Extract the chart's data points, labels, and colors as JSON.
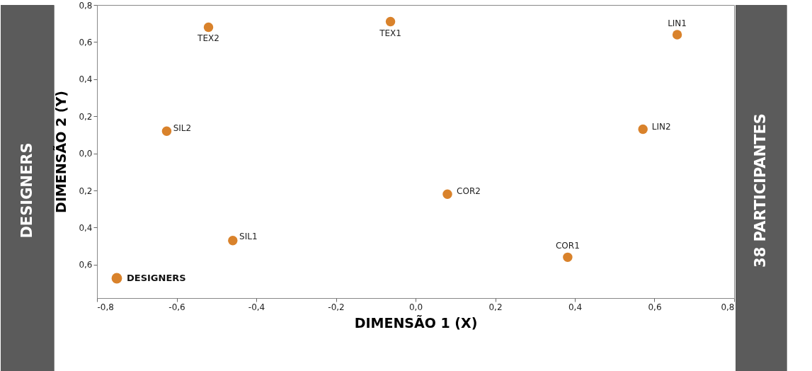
{
  "chart_data": {
    "type": "scatter",
    "xlabel": "DIMENSÃO 1 (X)",
    "ylabel": "DIMENSÃO 2 (Y)",
    "x": [
      -0.52,
      -0.063,
      0.657,
      -0.625,
      0.571,
      0.08,
      -0.459,
      0.382
    ],
    "series": [
      {
        "name": "DESIGNERS",
        "color": "#d9822b",
        "values": [
          0.68,
          0.71,
          0.64,
          0.12,
          0.13,
          -0.22,
          -0.47,
          -0.56
        ]
      }
    ],
    "value_labels": [
      "TEX2",
      "TEX1",
      "LIN1",
      "SIL2",
      "LIN2",
      "COR2",
      "SIL1",
      "COR1"
    ],
    "xlim": [
      -0.8,
      0.8
    ],
    "ylim": [
      -0.78,
      0.8
    ],
    "xticks": [
      {
        "value": -0.8,
        "label": "-0,8"
      },
      {
        "value": -0.6,
        "label": "-0,6"
      },
      {
        "value": -0.4,
        "label": "-0,4"
      },
      {
        "value": -0.2,
        "label": "-0,2"
      },
      {
        "value": 0,
        "label": "0,0"
      },
      {
        "value": 0.2,
        "label": "0,2"
      },
      {
        "value": 0.4,
        "label": "0,4"
      },
      {
        "value": 0.6,
        "label": "0,6"
      },
      {
        "value": 0.8,
        "label": "0,8"
      }
    ],
    "yticks": [
      {
        "value": -0.6,
        "label": "0,6"
      },
      {
        "value": -0.4,
        "label": "0,4"
      },
      {
        "value": -0.2,
        "label": "0,2"
      },
      {
        "value": 0,
        "label": "0,0"
      },
      {
        "value": 0.2,
        "label": "0,2"
      },
      {
        "value": 0.4,
        "label": "0,4"
      },
      {
        "value": 0.6,
        "label": "0,6"
      },
      {
        "value": 0.8,
        "label": "0,8"
      }
    ],
    "grid": false,
    "legend": "bottom left",
    "marker": "circle",
    "annotations": [
      "DESIGNERS",
      "38 PARTICIPANTES"
    ]
  }
}
